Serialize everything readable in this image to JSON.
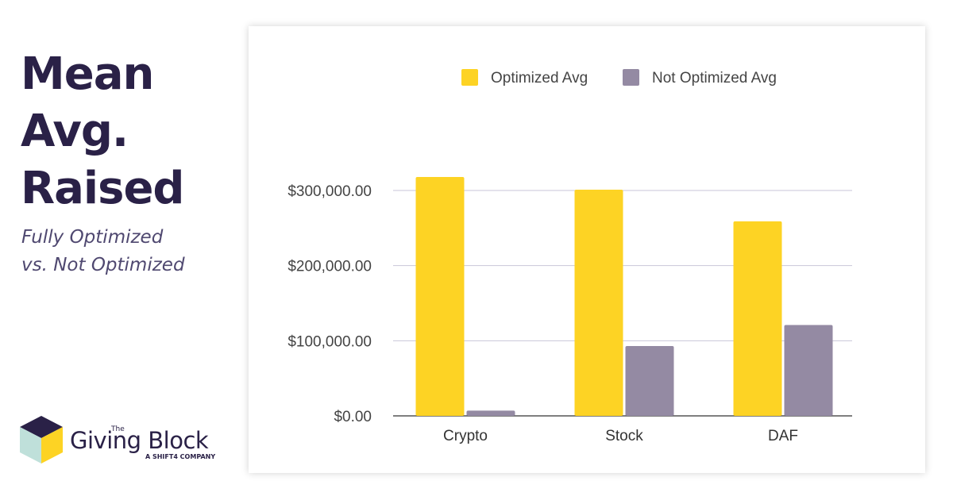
{
  "headline": {
    "lines": [
      "Mean",
      "Avg.",
      "Raised"
    ]
  },
  "subhead": {
    "lines": [
      "Fully Optimized",
      "vs. Not Optimized"
    ]
  },
  "logo": {
    "the": "The",
    "name": "Giving Block",
    "tagline": "A SHIFT4 COMPANY"
  },
  "colors": {
    "optimized": "#fdd324",
    "not_optimized": "#948aa3",
    "text": "#2a2147",
    "grid": "#c8c6d8"
  },
  "chart_data": {
    "type": "bar",
    "categories": [
      "Crypto",
      "Stock",
      "DAF"
    ],
    "series": [
      {
        "name": "Optimized Avg",
        "values": [
          318000,
          301000,
          259000
        ]
      },
      {
        "name": "Not Optimized Avg",
        "values": [
          7000,
          93000,
          121000
        ]
      }
    ],
    "yticks": [
      0,
      100000,
      200000,
      300000
    ],
    "ytick_labels": [
      "$0.00",
      "$100,000.00",
      "$200,000.00",
      "$300,000.00"
    ],
    "ylim": [
      0,
      300000
    ],
    "legend": "top",
    "grid": true
  }
}
